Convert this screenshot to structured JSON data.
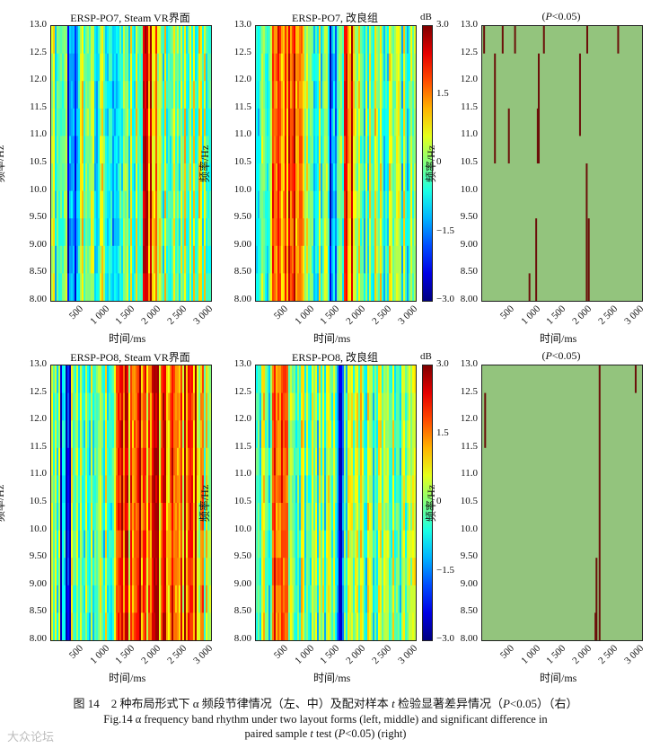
{
  "figure": {
    "panels": [
      {
        "id": "r1c1",
        "title": "ERSP-PO7, Steam VR界面",
        "type": "heatmap",
        "seed": 11,
        "hot": [
          [
            0.57,
            0.66
          ]
        ],
        "cold": [
          [
            0.1,
            0.16
          ],
          [
            0.36,
            0.4
          ]
        ]
      },
      {
        "id": "r1c2",
        "title": "ERSP-PO7, 改良组",
        "type": "heatmap",
        "seed": 23,
        "hot": [
          [
            0.1,
            0.3
          ],
          [
            0.55,
            0.6
          ]
        ],
        "cold": [
          [
            0.45,
            0.5
          ]
        ]
      },
      {
        "id": "r1c3",
        "title_prefix": "(",
        "title_italic": "P",
        "title_suffix": "<0.05)",
        "type": "significance"
      },
      {
        "id": "r2c1",
        "title": "ERSP-PO8, Steam VR界面",
        "type": "heatmap",
        "seed": 37,
        "hot": [
          [
            0.4,
            0.95
          ]
        ],
        "cold": [
          [
            0.05,
            0.12
          ]
        ]
      },
      {
        "id": "r2c2",
        "title": "ERSP-PO8, 改良组",
        "type": "heatmap",
        "seed": 53,
        "hot": [
          [
            0.1,
            0.2
          ]
        ],
        "cold": [
          [
            0.5,
            0.55
          ]
        ]
      },
      {
        "id": "r2c3",
        "title_prefix": "(",
        "title_italic": "P",
        "title_suffix": "<0.05)",
        "type": "significance"
      }
    ],
    "y_label": "频率/Hz",
    "x_label": "时间/ms",
    "y_ticks": [
      "13.0",
      "12.5",
      "12.0",
      "11.5",
      "11.0",
      "10.5",
      "10.0",
      "9.50",
      "9.00",
      "8.50",
      "8.00"
    ],
    "x_ticks": [
      "500",
      "1 000",
      "1 500",
      "2 000",
      "2 500",
      "3 000"
    ],
    "colorbar": {
      "unit": "dB",
      "ticks": [
        "3.0",
        "1.5",
        "0",
        "−1.5",
        "−3.0"
      ]
    },
    "colors": {
      "sig_background": "#93c47d",
      "sig_mark": "#6b0f0a"
    }
  },
  "chart_data": {
    "type": "heatmap",
    "xlabel": "时间/ms",
    "ylabel": "频率/Hz",
    "xlim": [
      0,
      3100
    ],
    "ylim": [
      8.0,
      13.0
    ],
    "clim": [
      -3.0,
      3.0
    ],
    "significance_marks": {
      "r1c3": [
        {
          "t": 20,
          "f_lo": 12.5,
          "f_hi": 13.0
        },
        {
          "t": 380,
          "f_lo": 12.5,
          "f_hi": 13.0
        },
        {
          "t": 620,
          "f_lo": 12.5,
          "f_hi": 13.0
        },
        {
          "t": 1180,
          "f_lo": 12.5,
          "f_hi": 13.0
        },
        {
          "t": 2020,
          "f_lo": 12.5,
          "f_hi": 13.0
        },
        {
          "t": 2620,
          "f_lo": 12.5,
          "f_hi": 13.0
        },
        {
          "t": 230,
          "f_lo": 10.5,
          "f_hi": 12.5
        },
        {
          "t": 500,
          "f_lo": 10.5,
          "f_hi": 11.5
        },
        {
          "t": 1060,
          "f_lo": 10.5,
          "f_hi": 11.5
        },
        {
          "t": 1080,
          "f_lo": 10.5,
          "f_hi": 12.5
        },
        {
          "t": 1880,
          "f_lo": 11.0,
          "f_hi": 12.5
        },
        {
          "t": 2010,
          "f_lo": 8.0,
          "f_hi": 10.5
        },
        {
          "t": 1030,
          "f_lo": 8.0,
          "f_hi": 9.5
        },
        {
          "t": 2050,
          "f_lo": 8.0,
          "f_hi": 9.5
        },
        {
          "t": 900,
          "f_lo": 8.0,
          "f_hi": 8.5
        }
      ],
      "r2c3": [
        {
          "t": 2260,
          "f_lo": 8.0,
          "f_hi": 13.0
        },
        {
          "t": 2200,
          "f_lo": 8.0,
          "f_hi": 9.5
        },
        {
          "t": 2180,
          "f_lo": 8.0,
          "f_hi": 8.5
        },
        {
          "t": 2960,
          "f_lo": 12.5,
          "f_hi": 13.0
        },
        {
          "t": 40,
          "f_lo": 11.5,
          "f_hi": 12.5
        }
      ]
    }
  },
  "caption": {
    "cn_prefix": "图 14　2 种布局形式下 α 频段节律情况（左、中）及配对样本 ",
    "cn_italic": "t",
    "cn_middle": " 检验显著差异情况（",
    "cn_p": "P",
    "cn_suffix": "<0.05）（右）",
    "en_line1": "Fig.14 α frequency band rhythm under two layout forms (left, middle) and significant difference in",
    "en_line2_prefix": "paired sample ",
    "en_line2_t": "t",
    "en_line2_mid": " test (",
    "en_line2_p": "P",
    "en_line2_suffix": "<0.05) (right)"
  },
  "watermark": "大众论坛"
}
